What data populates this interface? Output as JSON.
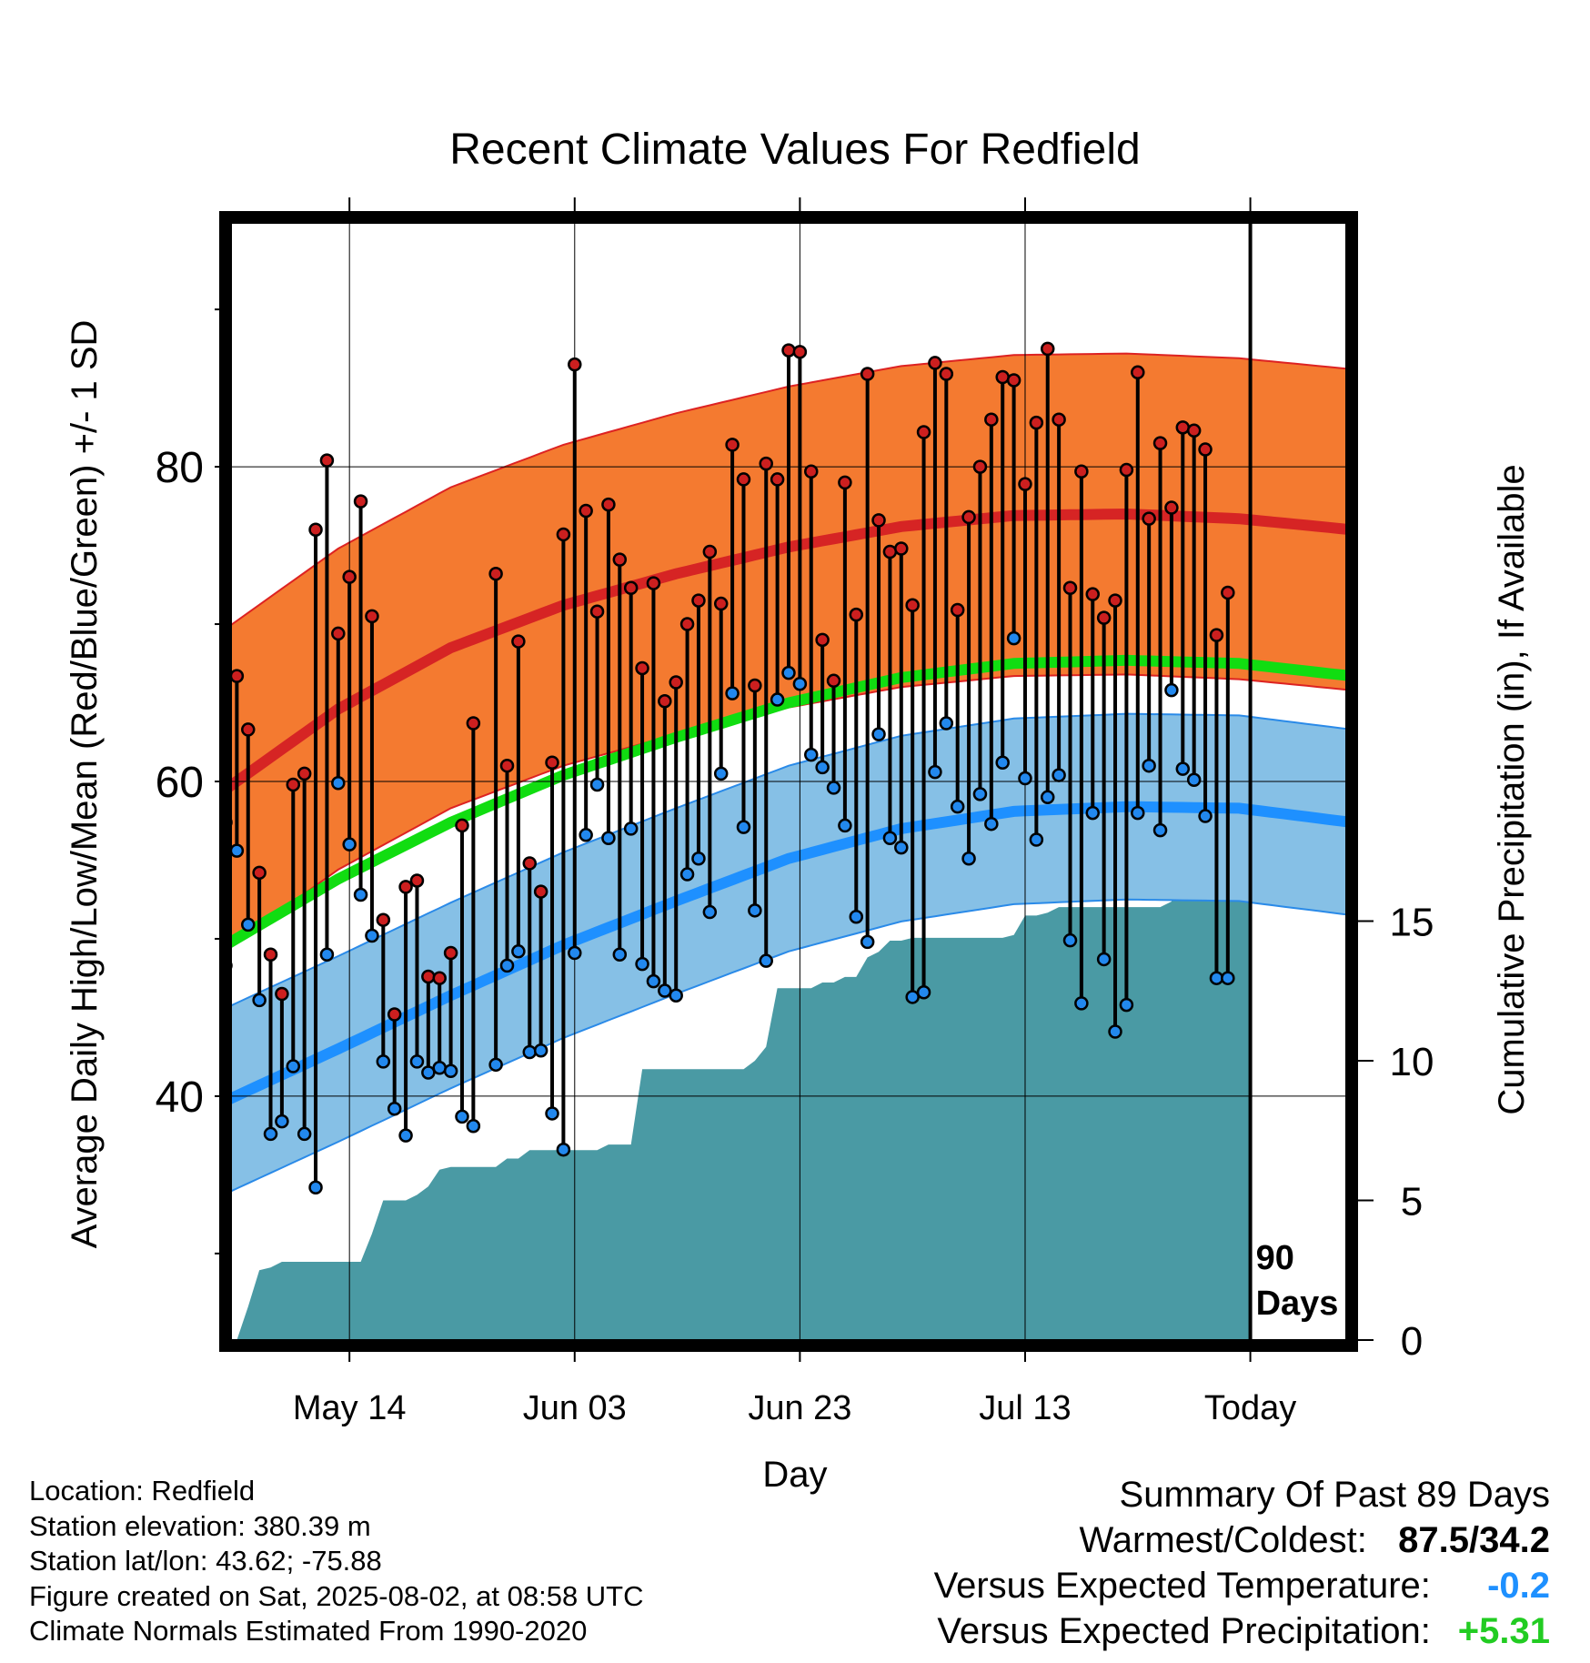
{
  "chart_data": {
    "type": "line",
    "title": "Recent Climate Values For Redfield",
    "xlabel": "Day",
    "ylabel_left": "Average Daily High/Low/Mean (Red/Blue/Green) +/- 1 SD",
    "ylabel_right": "Cumulative Precipitation (in), If Available",
    "x_tick_labels": [
      "May 14",
      "Jun 03",
      "Jun 23",
      "Jul 13",
      "Today"
    ],
    "x_tick_days": [
      11,
      31,
      51,
      71,
      91
    ],
    "left_ticks": [
      40,
      60,
      80
    ],
    "left_minor_ticks": [
      30,
      40,
      50,
      60,
      70,
      80,
      90
    ],
    "right_ticks": [
      0,
      5,
      10,
      15
    ],
    "ylim_left": [
      24.5,
      95.5
    ],
    "ylim_right": [
      0,
      40
    ],
    "xlim_days": [
      0,
      100
    ],
    "today_day": 91,
    "today_label": "90\nDays",
    "grid": true,
    "colors": {
      "high_band": "#f47a30",
      "high_line": "#d62424",
      "high_edge": "#dd2222",
      "low_band": "#86c0e6",
      "low_line": "#1e90ff",
      "low_edge": "#2a8ae8",
      "mean_line": "#11dd11",
      "precip": "#4a9aa4",
      "high_point": "#cc1f1f",
      "low_point": "#2288ee"
    },
    "normals": {
      "days": [
        0,
        10,
        20,
        30,
        40,
        50,
        60,
        70,
        80,
        90,
        100
      ],
      "high_mean": [
        59.5,
        64.6,
        68.5,
        71.2,
        73.2,
        74.9,
        76.2,
        76.9,
        77.0,
        76.7,
        76.0
      ],
      "high_sd": 10.2,
      "low_mean": [
        39.7,
        43.0,
        46.4,
        49.6,
        52.4,
        55.1,
        57.0,
        58.1,
        58.4,
        58.3,
        57.4
      ],
      "low_sd": 5.9,
      "mean": [
        49.6,
        53.8,
        57.4,
        60.4,
        62.8,
        65.0,
        66.6,
        67.5,
        67.7,
        67.5,
        66.7
      ]
    },
    "series": [
      {
        "name": "Daily High",
        "values": [
          57.4,
          66.7,
          63.3,
          54.2,
          49.0,
          46.5,
          59.8,
          60.5,
          76.0,
          80.4,
          69.4,
          73.0,
          77.8,
          70.5,
          51.2,
          45.2,
          53.3,
          53.7,
          47.6,
          47.5,
          49.1,
          57.2,
          63.7,
          null,
          73.2,
          61.0,
          68.9,
          54.8,
          53.0,
          61.2,
          75.7,
          86.5,
          77.2,
          70.8,
          77.6,
          74.1,
          72.3,
          67.2,
          72.6,
          65.1,
          66.3,
          70.0,
          71.5,
          74.6,
          71.3,
          81.4,
          79.2,
          66.1,
          80.2,
          79.2,
          87.4,
          87.3,
          79.7,
          69.0,
          66.4,
          79.0,
          70.6,
          85.9,
          76.6,
          74.6,
          74.8,
          71.2,
          82.2,
          86.6,
          85.9,
          70.9,
          76.8,
          80.0,
          83.0,
          85.7,
          85.5,
          78.9,
          82.8,
          87.5,
          83.0,
          72.3,
          79.7,
          71.9,
          70.4,
          71.5,
          79.8,
          86.0,
          76.7,
          81.5,
          77.4,
          82.5,
          82.3,
          81.1,
          69.3,
          72.0
        ],
        "color": "#cc1f1f"
      },
      {
        "name": "Daily Low",
        "values": [
          48.3,
          55.6,
          50.9,
          46.1,
          37.6,
          38.4,
          41.9,
          37.6,
          34.2,
          49.0,
          59.9,
          56.0,
          52.8,
          50.2,
          42.2,
          39.2,
          37.5,
          42.2,
          41.5,
          41.8,
          41.6,
          38.7,
          38.1,
          null,
          42.0,
          48.3,
          49.2,
          42.8,
          42.9,
          38.9,
          36.6,
          49.1,
          56.6,
          59.8,
          56.4,
          49.0,
          57.0,
          48.4,
          47.3,
          46.7,
          46.4,
          54.1,
          55.1,
          51.7,
          60.5,
          65.6,
          57.1,
          51.8,
          48.6,
          65.2,
          66.9,
          66.2,
          61.7,
          60.9,
          59.6,
          57.2,
          51.4,
          49.8,
          63.0,
          56.4,
          55.8,
          46.3,
          46.6,
          60.6,
          63.7,
          58.4,
          55.1,
          59.2,
          57.3,
          61.2,
          69.1,
          60.2,
          56.3,
          59.0,
          60.4,
          49.9,
          45.9,
          58.0,
          48.7,
          44.1,
          45.8,
          58.0,
          61.0,
          56.9,
          65.8,
          60.8,
          60.1,
          57.8,
          47.5,
          47.5
        ],
        "color": "#2288ee"
      },
      {
        "name": "Cumulative Precipitation",
        "values": [
          0.0,
          0.0,
          1.2,
          2.5,
          2.6,
          2.8,
          2.8,
          2.8,
          2.8,
          2.8,
          2.8,
          2.8,
          2.8,
          3.8,
          5.0,
          5.0,
          5.0,
          5.2,
          5.5,
          6.1,
          6.2,
          6.2,
          6.2,
          6.2,
          6.2,
          6.5,
          6.5,
          6.8,
          6.8,
          6.8,
          6.8,
          6.8,
          6.8,
          6.8,
          7.0,
          7.0,
          7.0,
          9.7,
          9.7,
          9.7,
          9.7,
          9.7,
          9.7,
          9.7,
          9.7,
          9.7,
          9.7,
          10.0,
          10.5,
          12.6,
          12.6,
          12.6,
          12.6,
          12.8,
          12.8,
          13.0,
          13.0,
          13.7,
          13.9,
          14.3,
          14.3,
          14.4,
          14.4,
          14.4,
          14.4,
          14.4,
          14.4,
          14.4,
          14.4,
          14.4,
          14.5,
          15.2,
          15.2,
          15.3,
          15.5,
          15.5,
          15.5,
          15.5,
          15.5,
          15.5,
          15.5,
          15.5,
          15.5,
          15.5,
          15.7,
          16.8,
          16.8,
          16.8,
          16.8,
          16.8,
          16.8,
          16.8
        ],
        "color": "#4a9aa4"
      }
    ]
  },
  "info": {
    "location": "Location: Redfield",
    "elevation": "Station elevation: 380.39 m",
    "latlon": "Station lat/lon: 43.62; -75.88",
    "created": "Figure created on Sat, 2025-08-02, at 08:58 UTC",
    "normals_period": "Climate Normals Estimated From 1990-2020"
  },
  "summary": {
    "title": "Summary Of Past 89 Days",
    "warm_cold_label": "Warmest/Coldest:",
    "warm_cold_value": "87.5/34.2",
    "temp_label": "Versus Expected Temperature:",
    "temp_value": "-0.2",
    "precip_label": "Versus Expected Precipitation:",
    "precip_value": "+5.31",
    "temp_color": "#1e90ff",
    "precip_color": "#22cc22"
  }
}
